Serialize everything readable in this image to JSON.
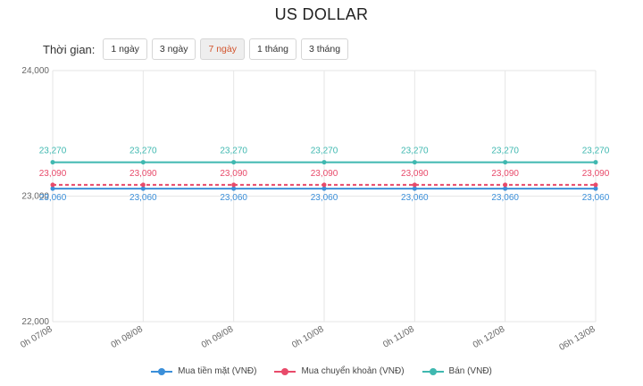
{
  "header": {
    "title": "US DOLLAR"
  },
  "range": {
    "label": "Thời gian:",
    "options": [
      "1 ngày",
      "3 ngày",
      "7 ngày",
      "1 tháng",
      "3 tháng"
    ],
    "selected": "7 ngày"
  },
  "colors": {
    "grid": "#e6e6e6",
    "axis_text": "#666666",
    "active_range": "#d2542d"
  },
  "chart_data": {
    "type": "line",
    "x": [
      "0h 07/08",
      "0h 08/08",
      "0h 09/08",
      "0h 10/08",
      "0h 11/08",
      "0h 12/08",
      "06h 13/08"
    ],
    "ylim": [
      22000,
      24000
    ],
    "yticks": [
      "22,000",
      "23,000",
      "24,000"
    ],
    "grid": true,
    "legend_position": "bottom",
    "series": [
      {
        "name": "Mua tiền mặt (VNĐ)",
        "color": "#3b8fd9",
        "dashed": false,
        "values": [
          23060,
          23060,
          23060,
          23060,
          23060,
          23060,
          23060
        ],
        "labels": [
          "23,060",
          "23,060",
          "23,060",
          "23,060",
          "23,060",
          "23,060",
          "23,060"
        ]
      },
      {
        "name": "Mua chuyển khoản (VNĐ)",
        "color": "#e84a6a",
        "dashed": true,
        "values": [
          23090,
          23090,
          23090,
          23090,
          23090,
          23090,
          23090
        ],
        "labels": [
          "23,090",
          "23,090",
          "23,090",
          "23,090",
          "23,090",
          "23,090",
          "23,090"
        ]
      },
      {
        "name": "Bán (VNĐ)",
        "color": "#3fb8b0",
        "dashed": false,
        "values": [
          23270,
          23270,
          23270,
          23270,
          23270,
          23270,
          23270
        ],
        "labels": [
          "23,270",
          "23,270",
          "23,270",
          "23,270",
          "23,270",
          "23,270",
          "23,270"
        ]
      }
    ]
  }
}
